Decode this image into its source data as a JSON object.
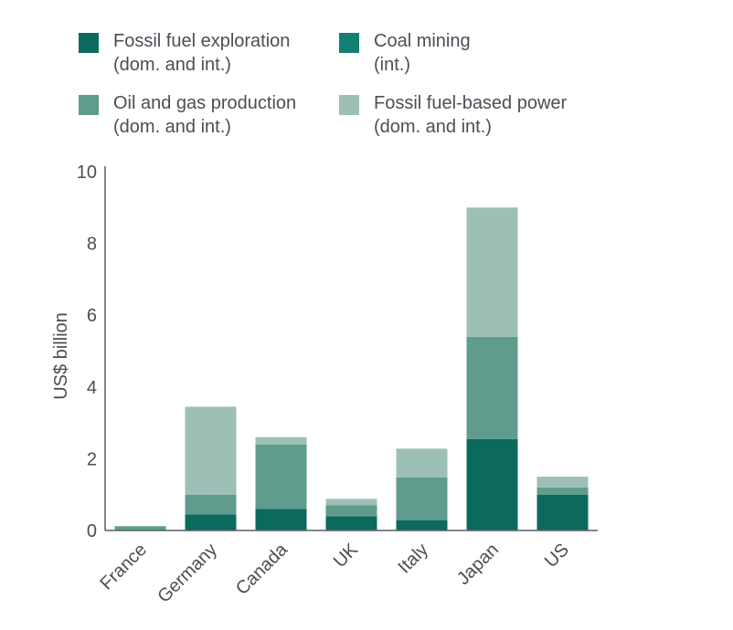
{
  "chart_data": {
    "type": "bar",
    "stacked": true,
    "ylabel": "US$ billion",
    "ylim": [
      0,
      10
    ],
    "yticks": [
      "0",
      "2",
      "4",
      "6",
      "8",
      "10"
    ],
    "categories": [
      "France",
      "Germany",
      "Canada",
      "UK",
      "Italy",
      "Japan",
      "US"
    ],
    "series": [
      {
        "name": "Fossil fuel exploration",
        "name_line2": "(dom. and int.)",
        "color": "#0b6a5c",
        "values": [
          0.0,
          0.45,
          0.6,
          0.4,
          0.28,
          2.55,
          1.0
        ]
      },
      {
        "name": "Coal mining",
        "name_line2": "(int.)",
        "color": "#137f72",
        "values": [
          0.0,
          0.0,
          0.0,
          0.0,
          0.0,
          0.0,
          0.0
        ]
      },
      {
        "name": "Oil and gas production",
        "name_line2": "(dom. and int.)",
        "color": "#5f9c8e",
        "values": [
          0.12,
          0.55,
          1.8,
          0.3,
          1.2,
          2.85,
          0.2
        ]
      },
      {
        "name": "Fossil fuel-based power",
        "name_line2": "(dom. and int.)",
        "color": "#9ebfb6",
        "values": [
          0.0,
          2.45,
          0.2,
          0.18,
          0.8,
          3.6,
          0.3
        ]
      }
    ],
    "grid": false,
    "legend_position": "top"
  }
}
